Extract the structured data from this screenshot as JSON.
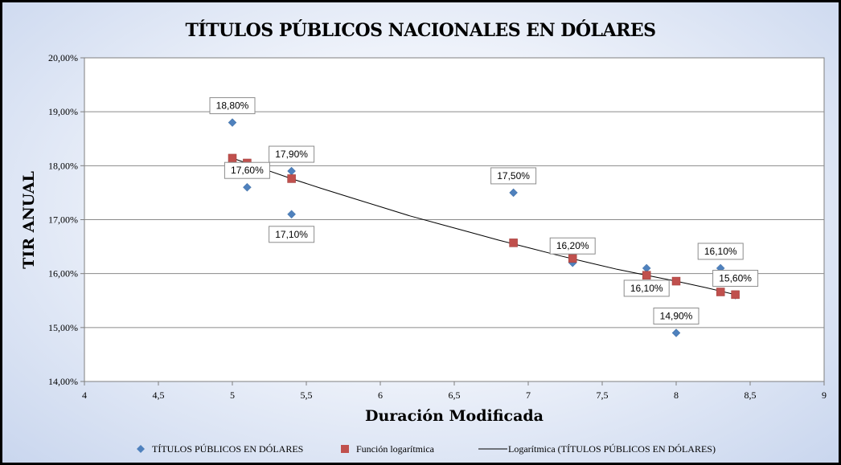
{
  "chart_data": {
    "type": "scatter",
    "title": "TÍTULOS PÚBLICOS NACIONALES EN DÓLARES",
    "xlabel": "Duración Modificada",
    "ylabel": "TIR ANUAL",
    "xlim": [
      4,
      9
    ],
    "ylim": [
      0.14,
      0.2
    ],
    "x_ticks": [
      "4",
      "4,5",
      "5",
      "5,5",
      "6",
      "6,5",
      "7",
      "7,5",
      "8",
      "8,5",
      "9"
    ],
    "y_ticks": [
      "14,00%",
      "15,00%",
      "16,00%",
      "17,00%",
      "18,00%",
      "19,00%",
      "20,00%"
    ],
    "grid": "horizontal",
    "legend_position": "bottom",
    "series": [
      {
        "name": "TÍTULOS PÚBLICOS  EN DÓLARES",
        "marker": "diamond",
        "color": "#4f81bd",
        "x": [
          5.0,
          5.1,
          5.4,
          5.4,
          6.9,
          7.3,
          7.8,
          8.0,
          8.3,
          8.4
        ],
        "y": [
          0.188,
          0.176,
          0.179,
          0.171,
          0.175,
          0.162,
          0.161,
          0.149,
          0.161,
          0.156
        ]
      },
      {
        "name": "Función logarítmica",
        "marker": "square",
        "color": "#c0504d",
        "x": [
          5.0,
          5.1,
          5.4,
          6.9,
          7.3,
          7.8,
          8.0,
          8.3,
          8.4
        ],
        "y": [
          0.1814,
          0.1805,
          0.1776,
          0.1657,
          0.1628,
          0.1597,
          0.1586,
          0.1566,
          0.1561
        ]
      },
      {
        "name": "Logarítmica (TÍTULOS PÚBLICOS  EN DÓLARES)",
        "type": "line",
        "color": "#000000",
        "x": [
          5.0,
          5.2,
          5.4,
          5.6,
          5.8,
          6.0,
          6.2,
          6.4,
          6.6,
          6.8,
          7.0,
          7.2,
          7.4,
          7.6,
          7.8,
          8.0,
          8.2,
          8.4
        ],
        "y": [
          0.1814,
          0.1795,
          0.1776,
          0.1758,
          0.1741,
          0.1724,
          0.1707,
          0.1692,
          0.1677,
          0.1662,
          0.1648,
          0.1634,
          0.1621,
          0.1608,
          0.1597,
          0.1586,
          0.1574,
          0.1561
        ]
      }
    ],
    "data_labels": [
      {
        "text": "18,80%",
        "x": 5.0,
        "y": 0.188,
        "position": "above"
      },
      {
        "text": "17,90%",
        "x": 5.4,
        "y": 0.179,
        "position": "above"
      },
      {
        "text": "17,60%",
        "x": 5.1,
        "y": 0.176,
        "position": "above"
      },
      {
        "text": "17,10%",
        "x": 5.4,
        "y": 0.171,
        "position": "below"
      },
      {
        "text": "17,50%",
        "x": 6.9,
        "y": 0.175,
        "position": "above"
      },
      {
        "text": "16,20%",
        "x": 7.3,
        "y": 0.162,
        "position": "above"
      },
      {
        "text": "16,10%",
        "x": 7.8,
        "y": 0.161,
        "position": "below"
      },
      {
        "text": "14,90%",
        "x": 8.0,
        "y": 0.149,
        "position": "above"
      },
      {
        "text": "16,10%",
        "x": 8.3,
        "y": 0.161,
        "position": "above"
      },
      {
        "text": "15,60%",
        "x": 8.4,
        "y": 0.156,
        "position": "above"
      }
    ]
  }
}
